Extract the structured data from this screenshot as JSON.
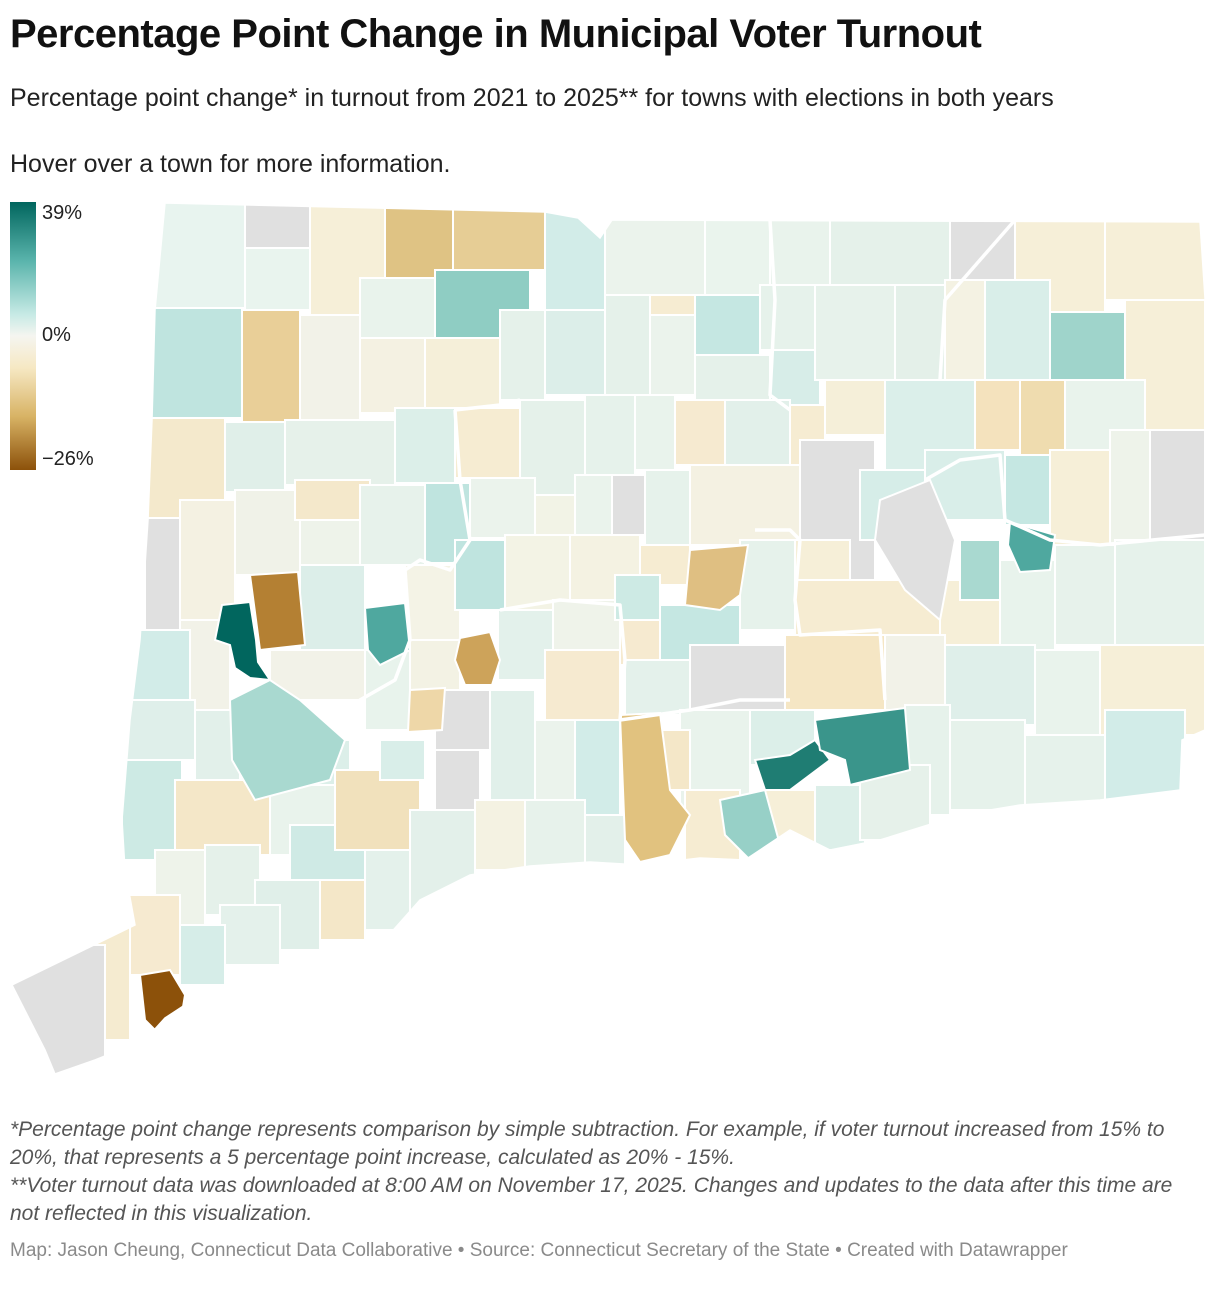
{
  "header": {
    "title": "Percentage Point Change in Municipal Voter Turnout",
    "subtitle": "Percentage point change* in turnout from 2021 to 2025** for towns with elections in both years",
    "hover_note": "Hover over a town for more information."
  },
  "legend": {
    "max_label": "39%",
    "mid_label": "0%",
    "min_label": "−26%",
    "colors": {
      "high": "#01665e",
      "mid_high": "#5ab4ac",
      "low_positive": "#c7eae5",
      "zero": "#f5f5f0",
      "low_negative": "#f6e8c3",
      "mid_low": "#d8b365",
      "low": "#8c510a",
      "no_data": "#e0e0e0"
    }
  },
  "map": {
    "region": "Connecticut towns",
    "scale_min": -26,
    "scale_max": 39
  },
  "footnotes": {
    "line1": "*Percentage point change represents comparison by simple subtraction. For example, if voter turnout increased from 15% to 20%, that represents a 5 percentage point increase, calculated as 20% - 15%.",
    "line2": "**Voter turnout data was downloaded at 8:00 AM on November 17, 2025. Changes and updates to the data after this time are not reflected in this visualization."
  },
  "credits": {
    "text": "Map: Jason Cheung, Connecticut Data Collaborative • Source: Connecticut Secretary of the State • Created with Datawrapper"
  }
}
